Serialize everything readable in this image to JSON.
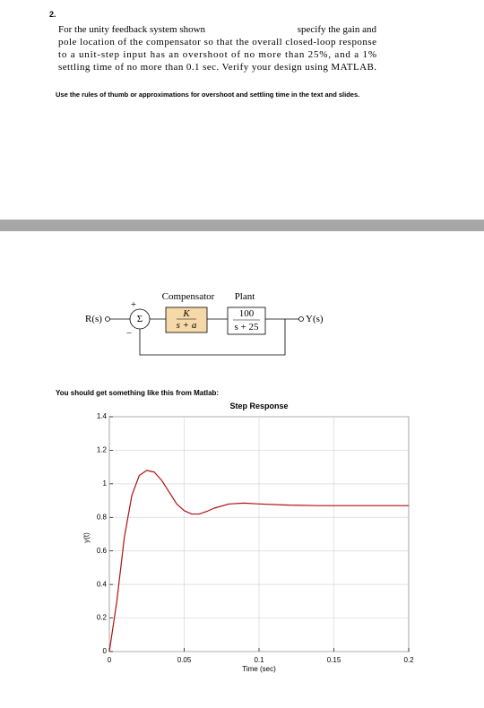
{
  "problem_number": "2.",
  "paragraph": [
    "For the unity feedback system shown",
    "specify the gain and",
    "pole location of the compensator so that the overall closed-loop response",
    "to a unit-step input has an overshoot of no more than 25%, and a 1%",
    "settling time of no more than 0.1 sec. Verify your design using MATLAB."
  ],
  "note": "Use the rules of thumb or approximations for overshoot and settling time in the text and slides.",
  "diagram": {
    "input": "R(s)",
    "sum": "Σ",
    "plus": "+",
    "minus": "−",
    "compensator_label": "Compensator",
    "compensator_num": "K",
    "compensator_den": "s + a",
    "plant_label": "Plant",
    "plant_num": "100",
    "plant_den": "s + 25",
    "output": "Y(s)"
  },
  "caption": "You should get something like this from Matlab:",
  "chart_data": {
    "type": "line",
    "title": "Step Response",
    "x_label": "Time (sec)",
    "y_label": "y(t)",
    "x": [
      0,
      0.005,
      0.01,
      0.015,
      0.02,
      0.025,
      0.03,
      0.035,
      0.04,
      0.045,
      0.05,
      0.055,
      0.06,
      0.065,
      0.07,
      0.08,
      0.09,
      0.1,
      0.12,
      0.14,
      0.16,
      0.18,
      0.2
    ],
    "series": [
      {
        "name": "y(t)",
        "color": "#b01010",
        "values": [
          0,
          0.3,
          0.68,
          0.93,
          1.05,
          1.08,
          1.07,
          1.02,
          0.95,
          0.88,
          0.84,
          0.82,
          0.82,
          0.835,
          0.855,
          0.88,
          0.885,
          0.88,
          0.873,
          0.87,
          0.87,
          0.87,
          0.87
        ]
      }
    ],
    "xlim": [
      0,
      0.2
    ],
    "ylim": [
      0,
      1.4
    ],
    "xticks": [
      0,
      0.05,
      0.1,
      0.15,
      0.2
    ],
    "yticks": [
      0,
      0.2,
      0.4,
      0.6,
      0.8,
      1,
      1.2,
      1.4
    ],
    "grid": true
  }
}
